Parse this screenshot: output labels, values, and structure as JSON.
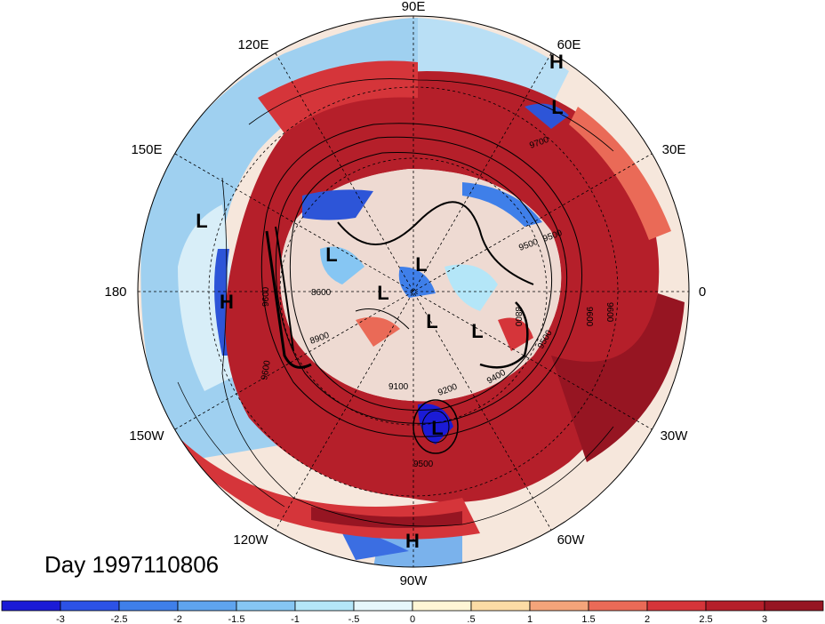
{
  "title": "Day 1997110806",
  "longitude_labels": [
    {
      "text": "90E",
      "id": "lon-90e"
    },
    {
      "text": "60E",
      "id": "lon-60e"
    },
    {
      "text": "120E",
      "id": "lon-120e"
    },
    {
      "text": "30E",
      "id": "lon-30e"
    },
    {
      "text": "150E",
      "id": "lon-150e"
    },
    {
      "text": "180",
      "id": "lon-180"
    },
    {
      "text": "0",
      "id": "lon-0"
    },
    {
      "text": "150W",
      "id": "lon-150w"
    },
    {
      "text": "30W",
      "id": "lon-30w"
    },
    {
      "text": "120W",
      "id": "lon-120w"
    },
    {
      "text": "60W",
      "id": "lon-60w"
    },
    {
      "text": "90W",
      "id": "lon-90w"
    }
  ],
  "pressure_centers": [
    "H",
    "L",
    "L",
    "H",
    "L",
    "L",
    "L",
    "L",
    "L",
    "L",
    "H"
  ],
  "contour_labels": [
    "9700",
    "9500",
    "9600",
    "9600",
    "8600",
    "8900",
    "8800",
    "9600",
    "9500",
    "9400",
    "9100",
    "9200",
    "9500",
    "9500",
    "9600"
  ],
  "colorbar": {
    "ticks": [
      "-3",
      "-2.5",
      "-2",
      "-1.5",
      "-1",
      "-.5",
      "0",
      ".5",
      "1",
      "1.5",
      "2",
      "2.5",
      "3"
    ],
    "colors": [
      "#1b1bd6",
      "#2c52e6",
      "#3f7fe9",
      "#5fa4ee",
      "#86c6f3",
      "#b4e6f8",
      "#e6f7fb",
      "#fff6d5",
      "#fcdca5",
      "#f4a47a",
      "#ea6a57",
      "#d5353a",
      "#b51f2a",
      "#961522"
    ]
  }
}
